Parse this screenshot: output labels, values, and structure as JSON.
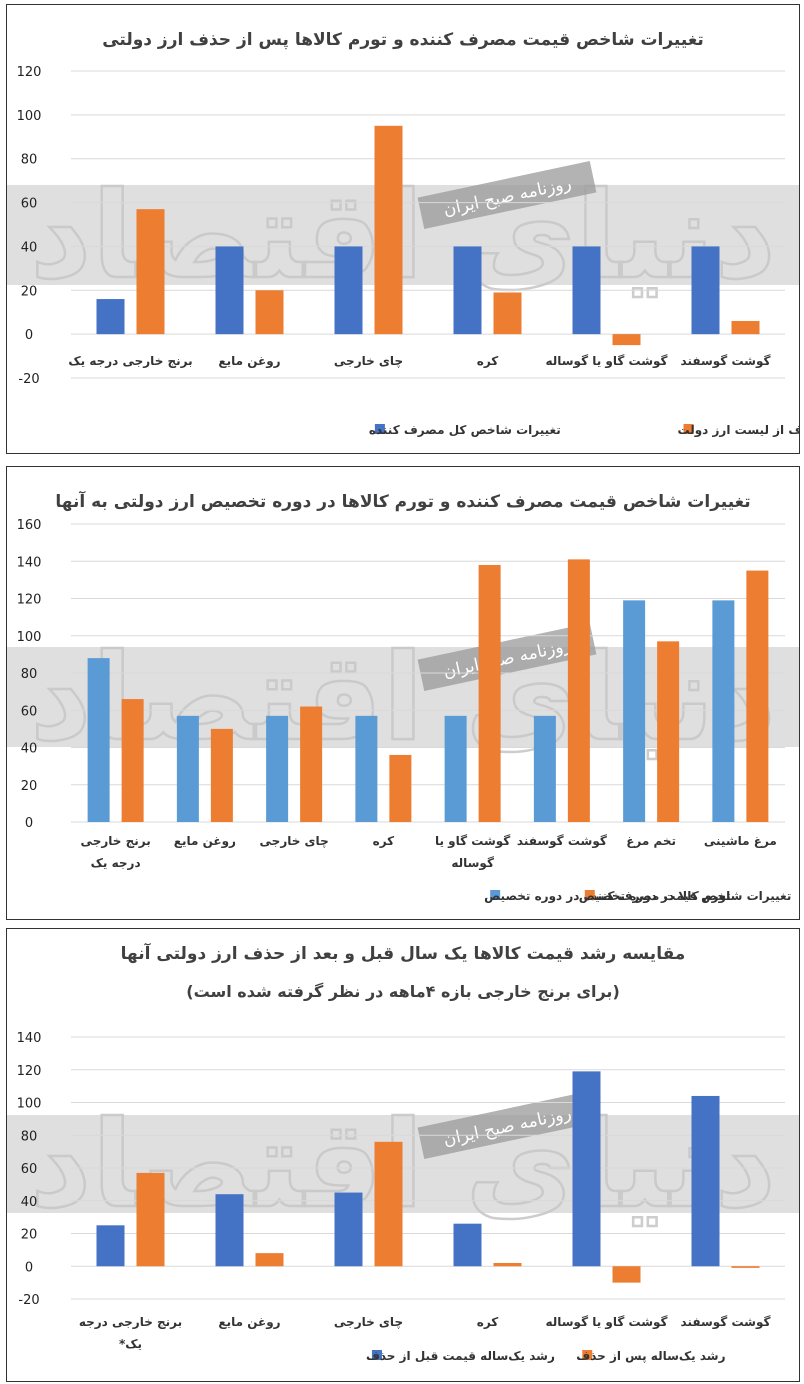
{
  "watermark": {
    "brand": "دنیای اقتصاد",
    "source": "روزنامه صبح ایران"
  },
  "colors": {
    "blue": "#4472c4",
    "light_blue": "#5b9bd5",
    "orange": "#ed7d31",
    "grid": "#d9d9d9",
    "band": "#d9d9d9"
  },
  "chart_data": [
    {
      "type": "bar",
      "title": "تغییرات شاخص قیمت  مصرف کننده و تورم کالاها پس از حذف ارز دولتی",
      "categories": [
        "برنج خارجی درجه یک",
        "روغن مایع",
        "چای خارجی",
        "کره",
        "گوشت گاو یا گوساله",
        "گوشت گوسفند"
      ],
      "series": [
        {
          "name": "تغییرات شاخص کل  مصرف کننده",
          "color": "#4472c4",
          "values": [
            16,
            40,
            40,
            40,
            40,
            40
          ]
        },
        {
          "name": "تورم کالاها پس از حذف از لیست ارز دولت",
          "color": "#ed7d31",
          "values": [
            57,
            20,
            95,
            19,
            -5,
            6
          ]
        }
      ],
      "yticks": [
        "120",
        "100",
        "80",
        "60",
        "40",
        "20",
        "0",
        "-20"
      ],
      "ylim": [
        -20,
        120
      ],
      "grid": true,
      "legend": "bottom"
    },
    {
      "type": "bar",
      "title": "تغییرات شاخص قیمت  مصرف کننده و تورم کالاها در دوره تخصیص ارز دولتی به آنها",
      "categories": [
        "برنج خارجی درجه یک",
        "روغن مایع",
        "چای خارجی",
        "کره",
        "گوشت گاو یا گوساله",
        "گوشت گوسفند",
        "تخم مرغ",
        "مرغ ماشینی"
      ],
      "series": [
        {
          "name": "تغییرات شاخص قیمت مصرف کننده در دوره تخصیص",
          "color": "#5b9bd5",
          "values": [
            88,
            57,
            57,
            57,
            57,
            57,
            119,
            119
          ]
        },
        {
          "name": "تورم کالا در دوره تخصیص",
          "color": "#ed7d31",
          "values": [
            66,
            50,
            62,
            36,
            138,
            141,
            97,
            135
          ]
        }
      ],
      "yticks": [
        "160",
        "140",
        "120",
        "100",
        "80",
        "60",
        "40",
        "20",
        "0"
      ],
      "ylim": [
        0,
        160
      ],
      "grid": true,
      "legend": "bottom"
    },
    {
      "type": "bar",
      "title": "مقایسه رشد قیمت کالاها یک سال قبل و بعد از حذف ارز دولتی آنها",
      "subtitle": "(برای برنج خارجی بازه ۴ماهه در نظر گرفته شده است)",
      "categories": [
        "برنج خارجی درجه یک*",
        "روغن مایع",
        "چای خارجی",
        "کره",
        "گوشت گاو یا گوساله",
        "گوشت گوسفند"
      ],
      "series": [
        {
          "name": "رشد یک‌ساله قیمت قبل از حذف",
          "color": "#4472c4",
          "values": [
            25,
            44,
            45,
            26,
            119,
            104
          ]
        },
        {
          "name": "رشد یک‌ساله پس از حذف",
          "color": "#ed7d31",
          "values": [
            57,
            8,
            76,
            2,
            -10,
            -1
          ]
        }
      ],
      "yticks": [
        "140",
        "120",
        "100",
        "80",
        "60",
        "40",
        "20",
        "0",
        "-20"
      ],
      "ylim": [
        -20,
        140
      ],
      "grid": true,
      "legend": "bottom"
    }
  ]
}
